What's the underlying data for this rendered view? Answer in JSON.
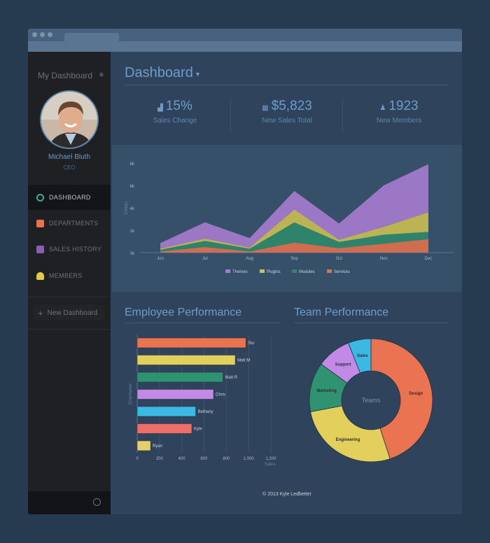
{
  "sidebar": {
    "title": "My Dashboard",
    "user": {
      "name": "Michael Bluth",
      "role": "CEO"
    },
    "items": [
      {
        "label": "DASHBOARD",
        "icon": "dashboard-icon",
        "color": "#3fae8c",
        "active": true
      },
      {
        "label": "DEPARTMENTS",
        "icon": "cube-icon",
        "color": "#e5734f",
        "active": false
      },
      {
        "label": "SALES HISTORY",
        "icon": "sales-history-icon",
        "color": "#8b5fb0",
        "active": false
      },
      {
        "label": "MEMBERS",
        "icon": "members-icon",
        "color": "#e3c94b",
        "active": false
      }
    ],
    "new_dashboard": "New Dashboard"
  },
  "header": {
    "title": "Dashboard"
  },
  "stats": [
    {
      "value": "15%",
      "label": "Sales Change",
      "icon": "chart-icon"
    },
    {
      "value": "$5,823",
      "label": "New Sales Total",
      "icon": "money-icon"
    },
    {
      "value": "1923",
      "label": "New Members",
      "icon": "users-icon"
    }
  ],
  "sections": {
    "employee": "Employee Performance",
    "team": "Team Performance"
  },
  "footer": {
    "copyright": "© 2013 Kyle Ledbetter"
  },
  "chart_data": [
    {
      "type": "area",
      "stacked": true,
      "categories": [
        "Jun",
        "Jul",
        "Aug",
        "Sep",
        "Oct",
        "Nov",
        "Dec"
      ],
      "ylabel": "Dollars",
      "ylim": [
        0,
        8000
      ],
      "yticks": [
        "0k",
        "2k",
        "4k",
        "6k",
        "8k"
      ],
      "legend": "bottom",
      "series": [
        {
          "name": "Services",
          "color": "#e0704f",
          "values": [
            100,
            500,
            100,
            900,
            400,
            800,
            1200
          ]
        },
        {
          "name": "Modules",
          "color": "#2d8a6a",
          "values": [
            150,
            550,
            250,
            1800,
            550,
            800,
            650
          ]
        },
        {
          "name": "Plugins",
          "color": "#cbbf52",
          "values": [
            100,
            200,
            100,
            1150,
            200,
            700,
            1750
          ]
        },
        {
          "name": "Themes",
          "color": "#a77bd0",
          "values": [
            500,
            1450,
            850,
            1650,
            1450,
            3700,
            4300
          ]
        }
      ]
    },
    {
      "type": "bar",
      "orientation": "horizontal",
      "categories": [
        "Stu",
        "Matt M",
        "Matt R",
        "Chris",
        "Bethany",
        "Kyle",
        "Ryan"
      ],
      "values": [
        975,
        880,
        770,
        685,
        525,
        490,
        120
      ],
      "colors": [
        "#ea7352",
        "#e3cf5c",
        "#2f9270",
        "#c28ae6",
        "#3bb8e3",
        "#ee6f67",
        "#e3cf6e"
      ],
      "xlabel": "Sales",
      "ylabel": "Employees",
      "xlim": [
        0,
        1200
      ],
      "xticks": [
        "0",
        "200",
        "400",
        "600",
        "800",
        "1,000",
        "1,200"
      ]
    },
    {
      "type": "pie",
      "donut": true,
      "center_label": "Teams",
      "categories": [
        "Design",
        "Engineering",
        "Marketing",
        "Support",
        "Sales"
      ],
      "values": [
        45,
        27,
        13,
        9,
        6
      ],
      "colors": [
        "#ea7352",
        "#e3cf5c",
        "#2f9270",
        "#c28ae6",
        "#3bb8e3"
      ]
    }
  ]
}
